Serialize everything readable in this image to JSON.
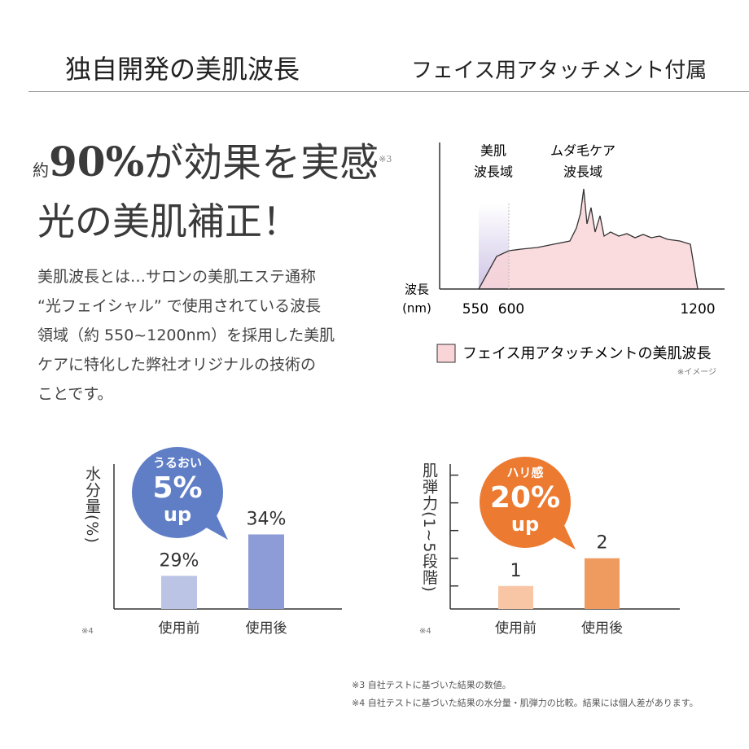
{
  "header": {
    "left": "独自開発の美肌波長",
    "right": "フェイス用アタッチメント付属"
  },
  "headline": {
    "prefix": "約",
    "number": "90%",
    "rest": "が効果を実感",
    "note": "※3",
    "line2": "光の美肌補正！"
  },
  "body": [
    "美肌波長とは…サロンの美肌エステ通称",
    "“光フェイシャル” で使用されている波長",
    "領域（約 550~1200nm）を採用した美肌",
    "ケアに特化した弊社オリジナルの技術の",
    "ことです。"
  ],
  "spectrum": {
    "band1": [
      "美肌",
      "波長域"
    ],
    "band2": [
      "ムダ毛ケア",
      "波長域"
    ],
    "axis_label": [
      "波長",
      "(nm)"
    ],
    "ticks": [
      550,
      600,
      1200
    ],
    "legend": "フェイス用アタッチメントの美肌波長",
    "note": "※イメージ"
  },
  "chart_data": [
    {
      "type": "bar",
      "ylabel": "水分量(%)",
      "categories": [
        "使用前",
        "使用後"
      ],
      "values": [
        29,
        34
      ],
      "value_labels": [
        "29%",
        "34%"
      ],
      "colors": [
        "#bcc4e6",
        "#8d9bd6"
      ],
      "ylim": [
        25,
        42.5
      ],
      "note": "※4",
      "badge": {
        "text": [
          "うるおい",
          "5%",
          "up"
        ],
        "color": "#5f7ec6"
      }
    },
    {
      "type": "bar",
      "ylabel": "肌弾力(1~5段階)",
      "categories": [
        "使用前",
        "使用後"
      ],
      "values": [
        1,
        2
      ],
      "colors": [
        "#f8c6a4",
        "#ef9a5e"
      ],
      "ylim": [
        0.17,
        5.4
      ],
      "yticks": [
        1,
        2,
        3,
        4,
        5
      ],
      "note": "※4",
      "badge": {
        "text": [
          "ハリ感",
          "20%",
          "up"
        ],
        "color": "#ec7a30"
      }
    }
  ],
  "footnotes": [
    "※3 自社テストに基づいた結果の数値。",
    "※4 自社テストに基づいた結果の水分量・肌弾力の比較。結果には個人差があります。"
  ]
}
